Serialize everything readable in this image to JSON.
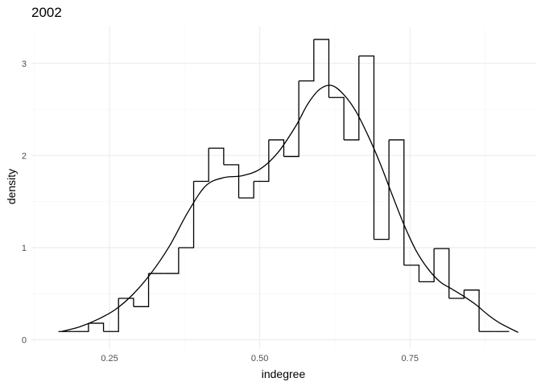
{
  "chart_data": {
    "type": "histogram",
    "title": "2002",
    "xlabel": "indegree",
    "ylabel": "density",
    "xlim": [
      0.12,
      0.96
    ],
    "ylim": [
      -0.1,
      3.4
    ],
    "x_ticks": [
      0.25,
      0.5,
      0.75
    ],
    "x_tick_labels": [
      "0.25",
      "0.50",
      "0.75"
    ],
    "x_minor_ticks": [
      0.125,
      0.375,
      0.625,
      0.875
    ],
    "y_ticks": [
      0,
      1,
      2,
      3
    ],
    "y_tick_labels": [
      "0",
      "1",
      "2",
      "3"
    ],
    "y_minor_ticks": [
      0.5,
      1.5,
      2.5
    ],
    "grid": true,
    "histogram": {
      "bin_edges": [
        0.165,
        0.19,
        0.215,
        0.24,
        0.265,
        0.29,
        0.315,
        0.34,
        0.365,
        0.39,
        0.415,
        0.44,
        0.465,
        0.49,
        0.515,
        0.54,
        0.565,
        0.59,
        0.615,
        0.64,
        0.665,
        0.69,
        0.715,
        0.74,
        0.765,
        0.79,
        0.815,
        0.84,
        0.865,
        0.89,
        0.915
      ],
      "densities": [
        0.09,
        0.09,
        0.18,
        0.09,
        0.45,
        0.36,
        0.72,
        0.72,
        1.0,
        1.72,
        2.08,
        1.9,
        1.54,
        1.72,
        2.17,
        1.99,
        2.81,
        3.26,
        2.63,
        2.17,
        3.08,
        1.09,
        2.17,
        0.81,
        0.63,
        0.99,
        0.45,
        0.54,
        0.09,
        0.09
      ]
    },
    "density_curve": {
      "x": [
        0.17,
        0.2,
        0.23,
        0.26,
        0.29,
        0.32,
        0.35,
        0.38,
        0.41,
        0.44,
        0.47,
        0.5,
        0.53,
        0.56,
        0.58,
        0.6,
        0.62,
        0.64,
        0.66,
        0.68,
        0.7,
        0.72,
        0.74,
        0.76,
        0.78,
        0.8,
        0.82,
        0.84,
        0.86,
        0.88,
        0.9,
        0.93
      ],
      "y": [
        0.09,
        0.14,
        0.22,
        0.33,
        0.5,
        0.73,
        1.02,
        1.38,
        1.67,
        1.76,
        1.78,
        1.85,
        2.03,
        2.32,
        2.56,
        2.72,
        2.76,
        2.66,
        2.48,
        2.22,
        1.92,
        1.58,
        1.25,
        0.97,
        0.77,
        0.63,
        0.55,
        0.47,
        0.38,
        0.27,
        0.18,
        0.08
      ]
    }
  }
}
